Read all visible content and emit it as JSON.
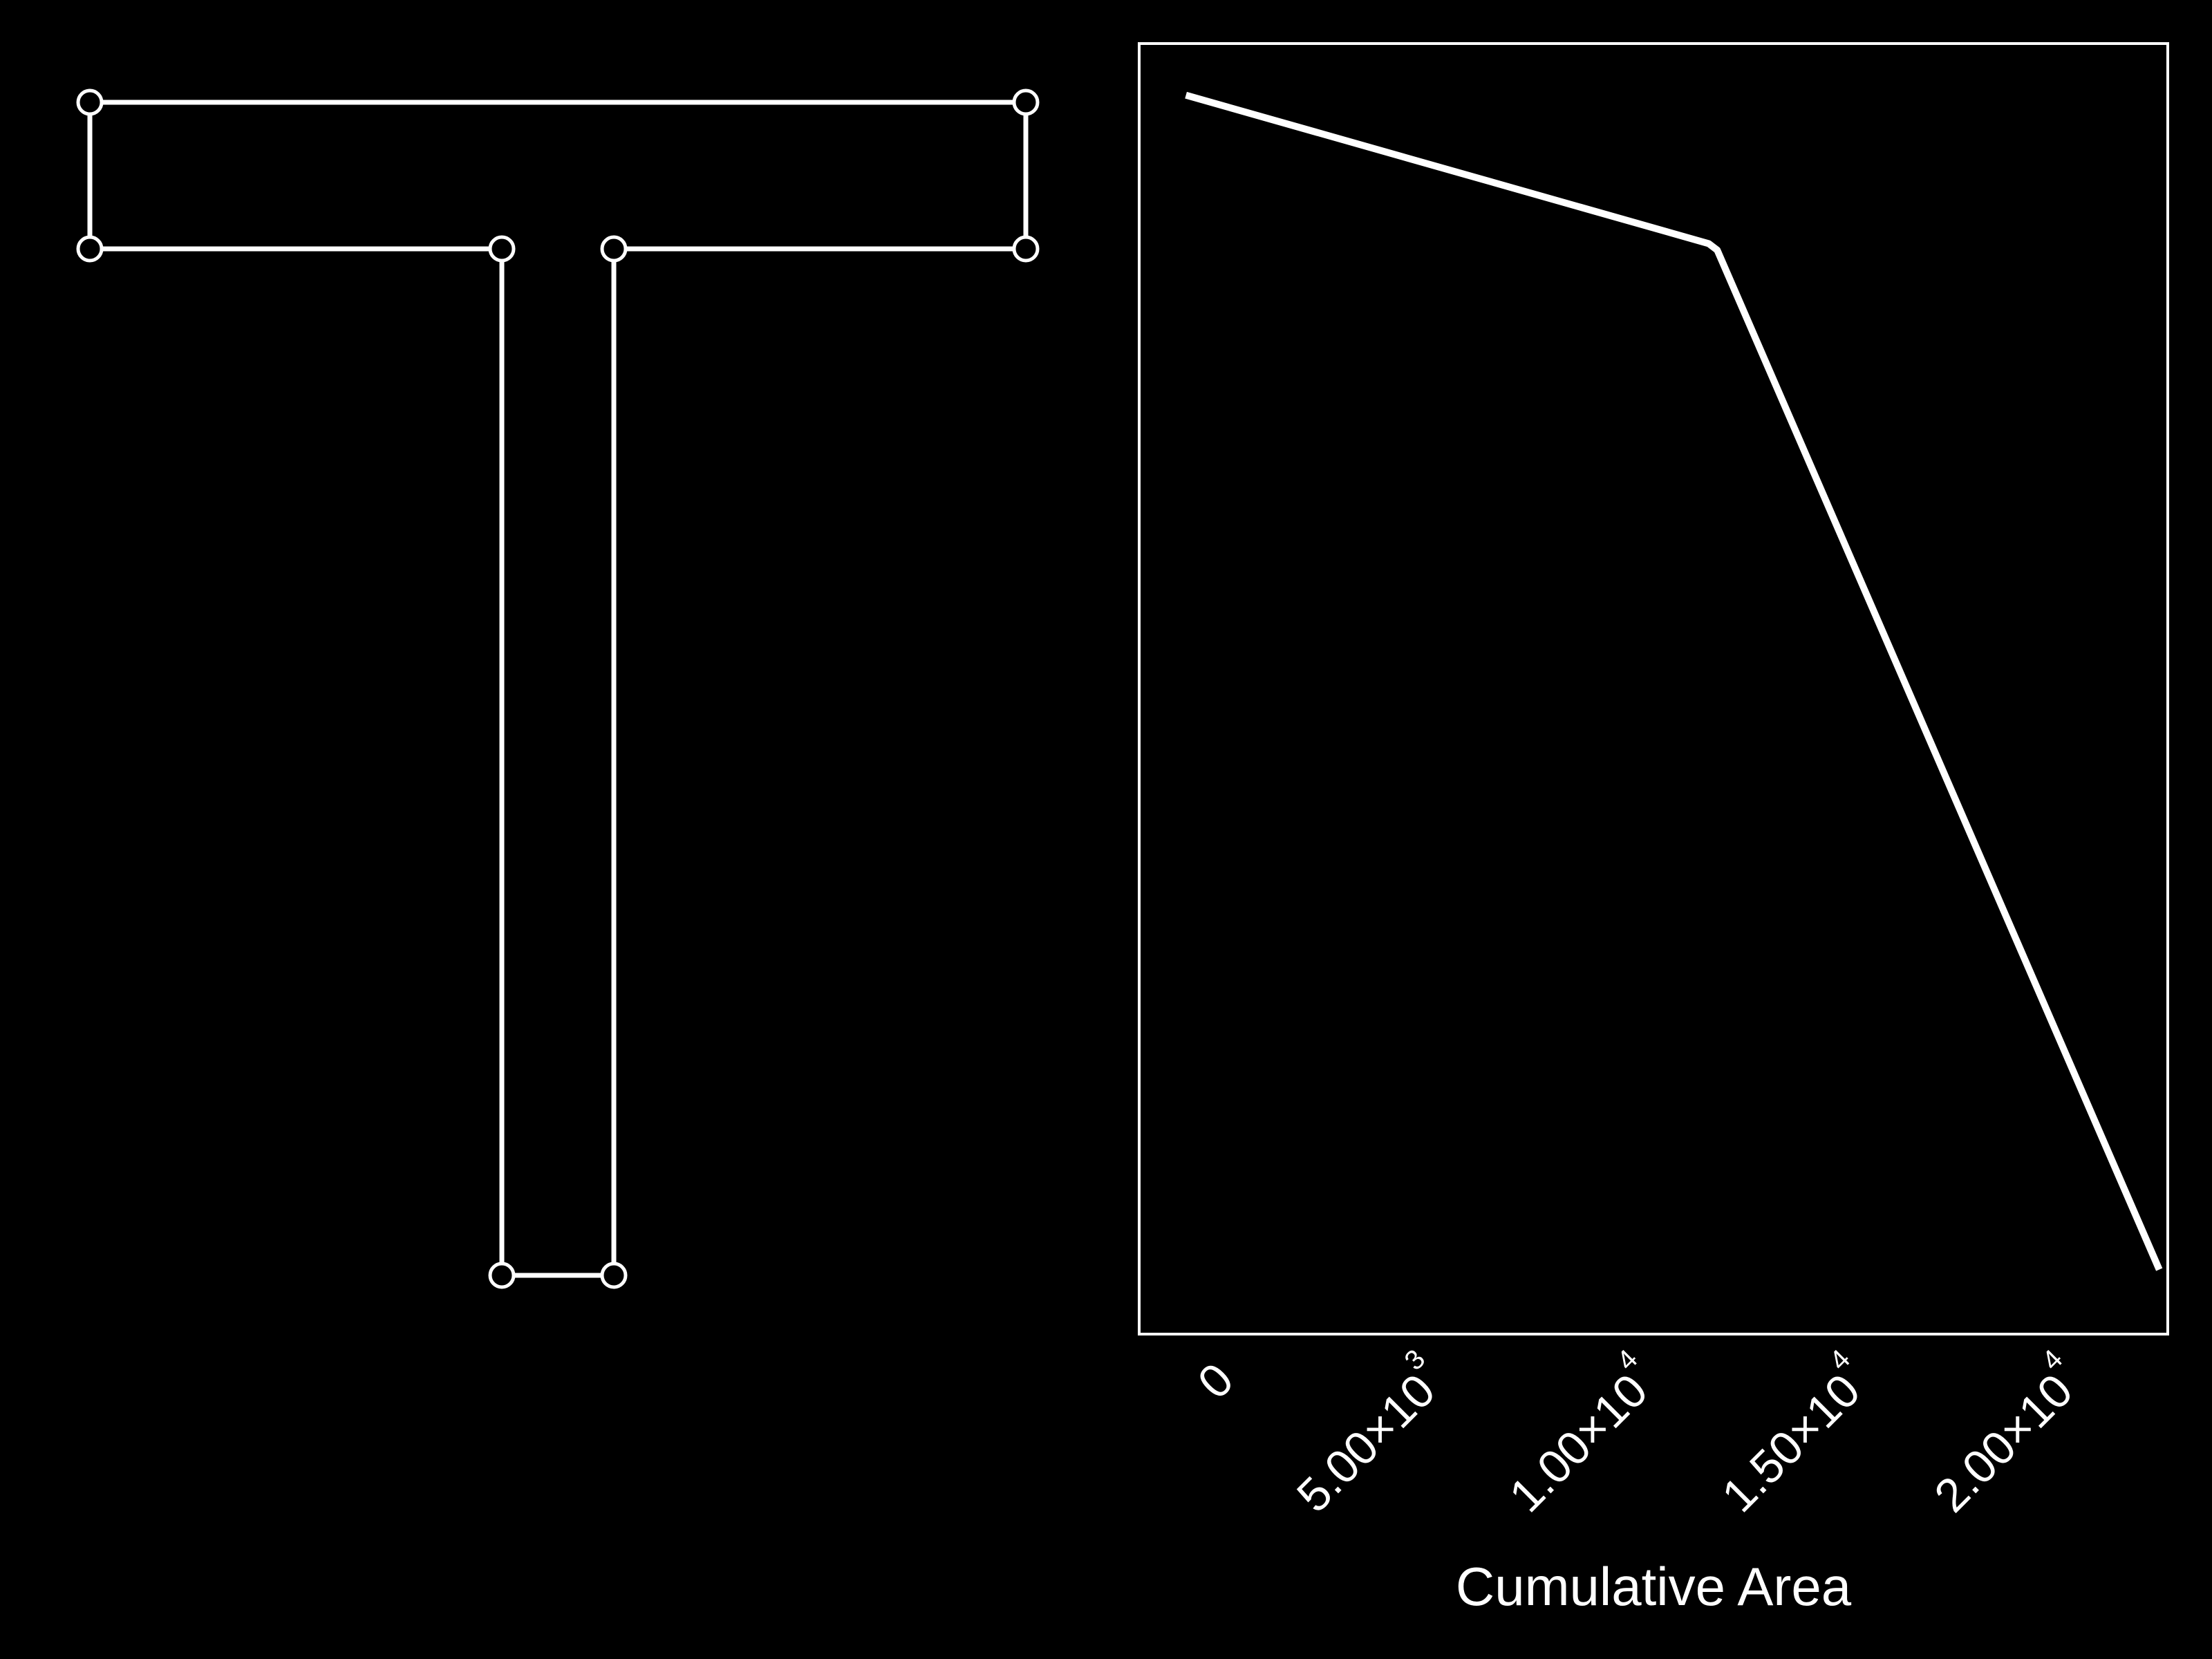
{
  "colors": {
    "background": "#000000",
    "foreground": "#ffffff"
  },
  "shape_panel": {
    "outline_vertex_count": 8,
    "vertex_marker": "hollow-circle"
  },
  "chart_data": {
    "type": "line",
    "title": "",
    "xlabel": "Cumulative Area",
    "ylabel": "",
    "xlim": [
      -1100,
      23100
    ],
    "x_ticks": [
      {
        "value": 0,
        "mantissa": "0",
        "exponent": ""
      },
      {
        "value": 5000,
        "mantissa": "5.00×10",
        "exponent": "3"
      },
      {
        "value": 10000,
        "mantissa": "1.00×10",
        "exponent": "4"
      },
      {
        "value": 15000,
        "mantissa": "1.50×10",
        "exponent": "4"
      },
      {
        "value": 20000,
        "mantissa": "2.00×10",
        "exponent": "4"
      }
    ],
    "y_ticks": [],
    "grid": false,
    "series": [
      {
        "x": [
          0,
          12300,
          12500,
          22900
        ],
        "y": [
          0.96,
          0.845,
          0.84,
          0.05
        ]
      }
    ]
  }
}
